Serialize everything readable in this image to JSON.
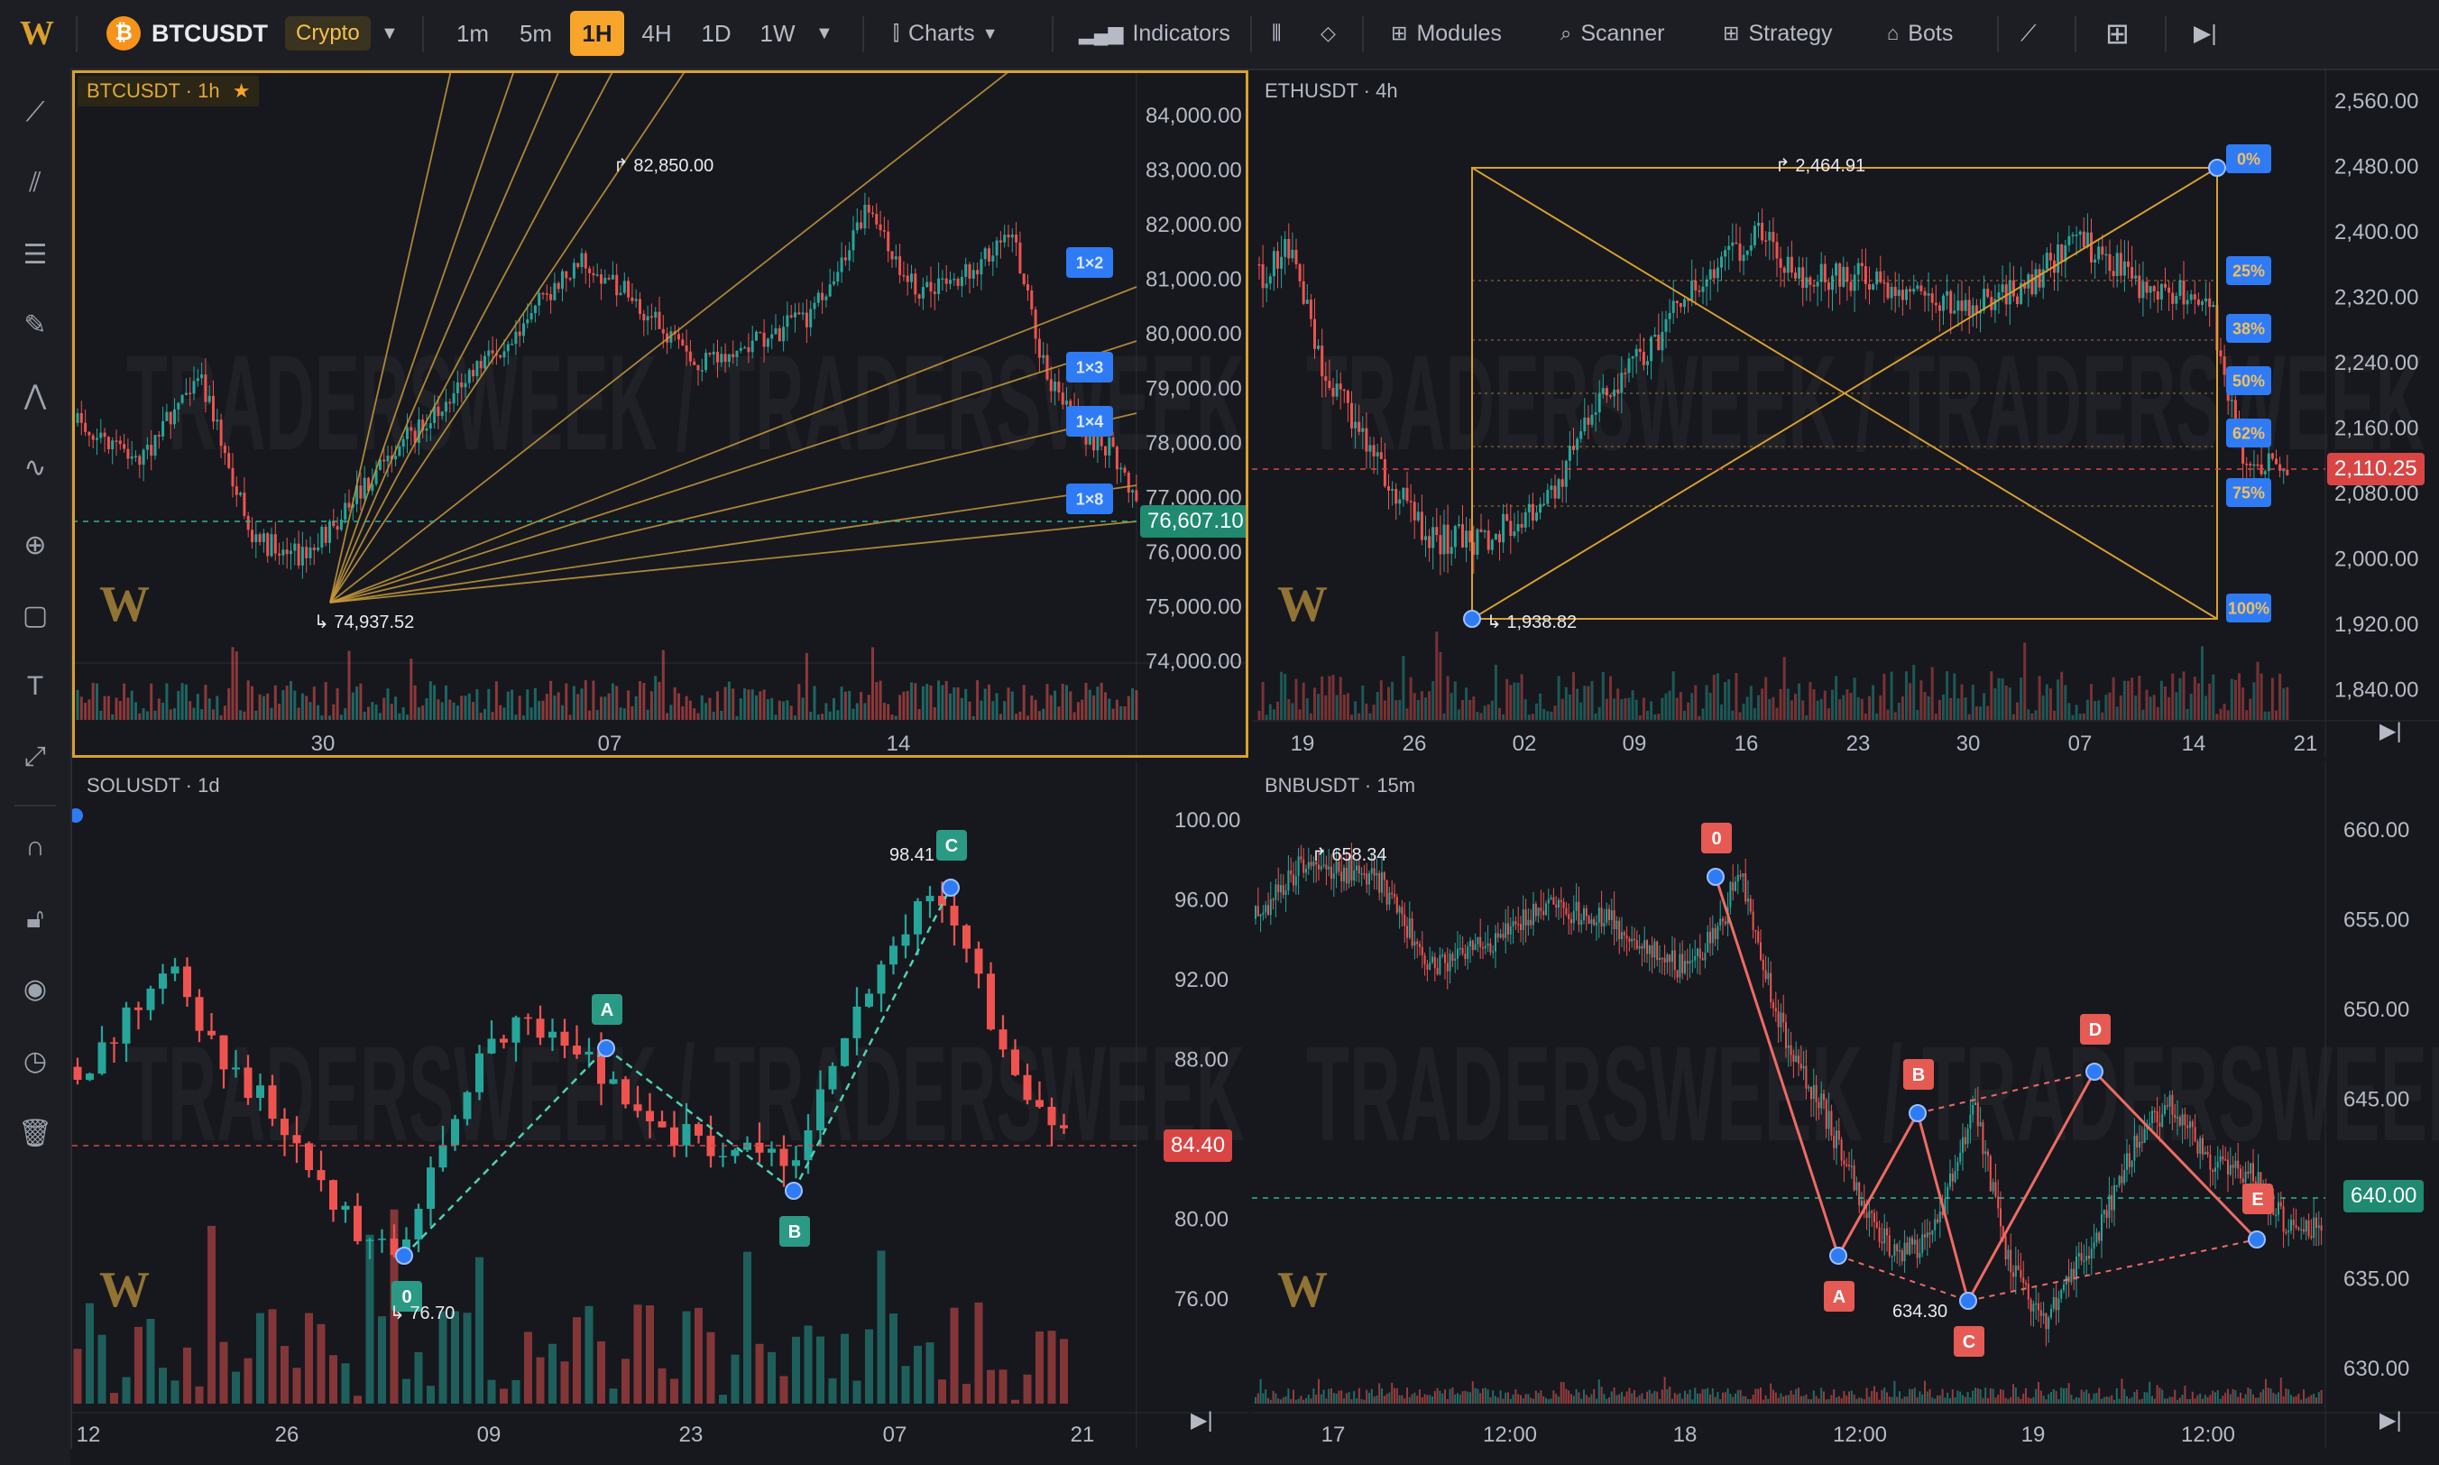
{
  "toolbar": {
    "logo": "W",
    "symbol": "BTCUSDT",
    "market_badge": "Crypto",
    "timeframes": [
      "1m",
      "5m",
      "1H",
      "4H",
      "1D",
      "1W"
    ],
    "active_timeframe": "1H",
    "charts_label": "Charts",
    "indicators_label": "Indicators",
    "modules_label": "Modules",
    "scanner_label": "Scanner",
    "strategy_label": "Strategy",
    "bots_label": "Bots"
  },
  "left_tools": [
    "trendline-icon",
    "parallel-channel-icon",
    "fib-lines-icon",
    "brush-icon",
    "pattern-icon",
    "wave-icon",
    "crosshair-icon",
    "rectangle-icon",
    "text-icon",
    "measure-icon",
    "magnet-icon",
    "lock-icon",
    "eye-icon",
    "clock-icon",
    "trash-icon"
  ],
  "watermark": "TRADERSWEEK / TRADERSWEEK",
  "colors": {
    "accent": "#f7a52b",
    "up": "#26a69a",
    "down": "#ef5350",
    "tool_blue": "#2f7bf5",
    "gann": "#c79a3b"
  },
  "panels": {
    "btc": {
      "symbol": "BTCUSDT",
      "interval": "1h",
      "last_price": "76,607.10",
      "high_label": "82,850.00",
      "low_label": "74,937.52",
      "gann_labels": [
        "1×2",
        "1×3",
        "1×4",
        "1×8"
      ],
      "y_ticks": [
        "84,000.00",
        "83,000.00",
        "82,000.00",
        "81,000.00",
        "80,000.00",
        "79,000.00",
        "78,000.00",
        "77,000.00",
        "76,000.00",
        "75,000.00",
        "74,000.00"
      ],
      "x_ticks": [
        "30",
        "07",
        "14"
      ]
    },
    "eth": {
      "symbol": "ETHUSDT",
      "interval": "4h",
      "last_price": "2,110.25",
      "high_label": "2,464.91",
      "low_label": "1,938.82",
      "fib_labels": [
        "0%",
        "25%",
        "38%",
        "50%",
        "62%",
        "75%",
        "100%"
      ],
      "y_ticks": [
        "2,560.00",
        "2,480.00",
        "2,400.00",
        "2,320.00",
        "2,240.00",
        "2,160.00",
        "2,080.00",
        "2,000.00",
        "1,920.00",
        "1,840.00"
      ],
      "x_ticks": [
        "19",
        "26",
        "02",
        "09",
        "16",
        "23",
        "30",
        "07",
        "14",
        "21"
      ]
    },
    "sol": {
      "symbol": "SOLUSDT",
      "interval": "1d",
      "last_price": "84.40",
      "high_label": "98.41",
      "low_label": "76.70",
      "pattern_labels": [
        "0",
        "A",
        "B",
        "C"
      ],
      "y_ticks": [
        "100.00",
        "96.00",
        "92.00",
        "88.00",
        "84.00",
        "80.00",
        "76.00"
      ],
      "x_ticks": [
        "12",
        "26",
        "09",
        "23",
        "07",
        "21"
      ]
    },
    "bnb": {
      "symbol": "BNBUSDT",
      "interval": "15m",
      "last_price": "640.00",
      "high_label": "658.34",
      "low_label": "634.30",
      "pattern_labels": [
        "0",
        "A",
        "B",
        "C",
        "D",
        "E"
      ],
      "y_ticks": [
        "660.00",
        "655.00",
        "650.00",
        "645.00",
        "640.00",
        "635.00",
        "630.00"
      ],
      "x_ticks": [
        "17",
        "12:00",
        "18",
        "12:00",
        "19",
        "12:00"
      ]
    }
  }
}
